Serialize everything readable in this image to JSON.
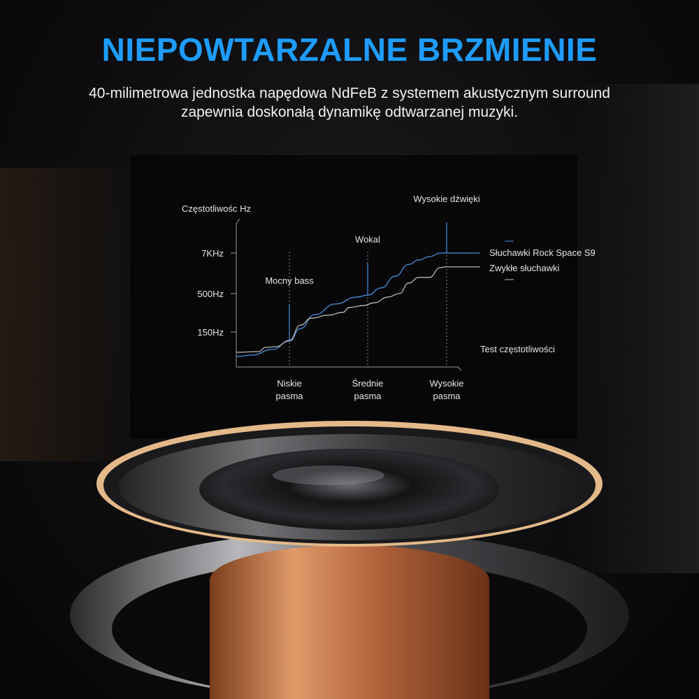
{
  "header": {
    "title": "NIEPOWTARZALNE BRZMIENIE",
    "subtitle_line1": "40-milimetrowa jednostka napędowa NdFeB z systemem akustycznym surround",
    "subtitle_line2": "zapewnia doskonałą dynamikę odtwarzanej muzyki."
  },
  "colors": {
    "title": "#1e9cff",
    "series_rock_space": "#4a8fe0",
    "series_regular": "#b8b8b8"
  },
  "chart_data": {
    "type": "line",
    "ylabel": "Częstotliwośc Hz",
    "xlabel": "Test częstotliwości",
    "y_ticks": [
      {
        "value": 1,
        "label": "150Hz"
      },
      {
        "value": 2,
        "label": "500Hz"
      },
      {
        "value": 3,
        "label": "7KHz"
      }
    ],
    "x_ticks": [
      {
        "value": 1,
        "label_line1": "Niskie",
        "label_line2": "pasma"
      },
      {
        "value": 2,
        "label_line1": "Średnie",
        "label_line2": "pasma"
      },
      {
        "value": 3,
        "label_line1": "Wysokie",
        "label_line2": "pasma"
      }
    ],
    "annotations": [
      {
        "x": 1,
        "label": "Mocny bass"
      },
      {
        "x": 2,
        "label": "Wokal"
      },
      {
        "x": 3,
        "label": "Wysokie dźwięki"
      }
    ],
    "grid": false,
    "legend_placement": "right",
    "series": [
      {
        "name": "Słuchawki Rock Space S9",
        "color": "#4a8fe0",
        "x": [
          0,
          0.29,
          0.68,
          1,
          1.14,
          1.32,
          1.59,
          1.86,
          2,
          2.17,
          2.35,
          2.52,
          2.65,
          2.78,
          2.92,
          3,
          3.42
        ],
        "y": [
          0.3,
          0.34,
          0.5,
          0.74,
          1.09,
          1.45,
          1.73,
          1.91,
          1.96,
          2.14,
          2.43,
          2.72,
          2.83,
          2.91,
          3,
          3,
          3
        ]
      },
      {
        "name": "Zwykłe słuchawki",
        "color": "#b8b8b8",
        "x": [
          0,
          0.42,
          0.55,
          0.75,
          1,
          1.14,
          1.28,
          1.5,
          1.68,
          1.77,
          1.95,
          2.08,
          2.26,
          2.4,
          2.52,
          2.65,
          2.78,
          2.92,
          3,
          3.42
        ],
        "y": [
          0.42,
          0.44,
          0.56,
          0.58,
          0.76,
          1.18,
          1.36,
          1.44,
          1.51,
          1.64,
          1.69,
          1.76,
          1.91,
          2,
          2.26,
          2.4,
          2.4,
          2.64,
          2.66,
          2.66
        ]
      }
    ]
  }
}
